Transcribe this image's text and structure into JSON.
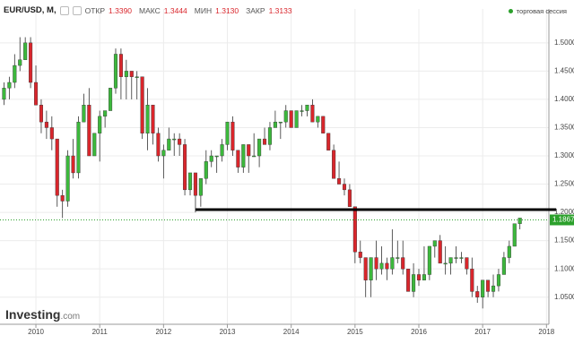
{
  "header": {
    "symbol": "EUR/USD, M,",
    "open_label": "ОТКР",
    "open": "1.3390",
    "high_label": "МАКС",
    "high": "1.3444",
    "low_label": "МИН",
    "low": "1.3130",
    "close_label": "ЗАКР",
    "close": "1.3133",
    "session": "торговая сессия"
  },
  "watermark": {
    "brand": "Investing",
    "suffix": ".com"
  },
  "chart_data": {
    "type": "candlestick",
    "up_color": "#3cb83c",
    "down_color": "#d9262c",
    "open": [
      1.4,
      1.42,
      1.43,
      1.46,
      1.47,
      1.5,
      1.43,
      1.39,
      1.36,
      1.35,
      1.33,
      1.23,
      1.22,
      1.3,
      1.27,
      1.36,
      1.39,
      1.3,
      1.34,
      1.37,
      1.38,
      1.42,
      1.48,
      1.44,
      1.45,
      1.44,
      1.44,
      1.34,
      1.39,
      1.34,
      1.3,
      1.31,
      1.33,
      1.33,
      1.32,
      1.24,
      1.27,
      1.23,
      1.26,
      1.29,
      1.3,
      1.3,
      1.32,
      1.36,
      1.31,
      1.28,
      1.32,
      1.3,
      1.3,
      1.33,
      1.32,
      1.35,
      1.36,
      1.36,
      1.38,
      1.35,
      1.38,
      1.38,
      1.39,
      1.36,
      1.37,
      1.34,
      1.31,
      1.26,
      1.25,
      1.24,
      1.21,
      1.13,
      1.12,
      1.08,
      1.12,
      1.1,
      1.11,
      1.1,
      1.12,
      1.12,
      1.1,
      1.06,
      1.09,
      1.08,
      1.09,
      1.14,
      1.15,
      1.11,
      1.11,
      1.12,
      1.12,
      1.12,
      1.1,
      1.06,
      1.05,
      1.08,
      1.06,
      1.07,
      1.09,
      1.12,
      1.14,
      1.18
    ],
    "high": [
      1.43,
      1.44,
      1.48,
      1.51,
      1.51,
      1.51,
      1.46,
      1.4,
      1.38,
      1.37,
      1.33,
      1.24,
      1.31,
      1.33,
      1.37,
      1.41,
      1.42,
      1.34,
      1.38,
      1.38,
      1.42,
      1.49,
      1.49,
      1.47,
      1.45,
      1.45,
      1.44,
      1.42,
      1.39,
      1.35,
      1.32,
      1.35,
      1.34,
      1.34,
      1.33,
      1.27,
      1.27,
      1.26,
      1.31,
      1.31,
      1.3,
      1.33,
      1.36,
      1.37,
      1.31,
      1.32,
      1.32,
      1.34,
      1.33,
      1.35,
      1.36,
      1.38,
      1.36,
      1.39,
      1.38,
      1.38,
      1.39,
      1.39,
      1.4,
      1.37,
      1.37,
      1.34,
      1.32,
      1.29,
      1.26,
      1.25,
      1.21,
      1.15,
      1.12,
      1.12,
      1.15,
      1.14,
      1.12,
      1.17,
      1.15,
      1.15,
      1.1,
      1.11,
      1.1,
      1.14,
      1.14,
      1.15,
      1.16,
      1.14,
      1.12,
      1.14,
      1.13,
      1.12,
      1.12,
      1.07,
      1.08,
      1.08,
      1.09,
      1.1,
      1.13,
      1.15,
      1.18,
      1.19
    ],
    "low": [
      1.39,
      1.4,
      1.42,
      1.45,
      1.47,
      1.42,
      1.39,
      1.34,
      1.33,
      1.31,
      1.21,
      1.19,
      1.21,
      1.26,
      1.26,
      1.36,
      1.3,
      1.3,
      1.29,
      1.35,
      1.38,
      1.41,
      1.4,
      1.4,
      1.4,
      1.4,
      1.33,
      1.31,
      1.32,
      1.29,
      1.26,
      1.31,
      1.3,
      1.3,
      1.23,
      1.23,
      1.2,
      1.21,
      1.25,
      1.28,
      1.27,
      1.29,
      1.31,
      1.3,
      1.27,
      1.27,
      1.27,
      1.3,
      1.28,
      1.32,
      1.31,
      1.35,
      1.33,
      1.35,
      1.35,
      1.35,
      1.37,
      1.37,
      1.36,
      1.35,
      1.34,
      1.31,
      1.26,
      1.25,
      1.23,
      1.21,
      1.11,
      1.11,
      1.05,
      1.05,
      1.08,
      1.09,
      1.08,
      1.09,
      1.11,
      1.09,
      1.06,
      1.05,
      1.07,
      1.08,
      1.08,
      1.12,
      1.11,
      1.09,
      1.09,
      1.11,
      1.11,
      1.09,
      1.05,
      1.04,
      1.03,
      1.05,
      1.05,
      1.06,
      1.09,
      1.11,
      1.14,
      1.17
    ],
    "close": [
      1.42,
      1.43,
      1.46,
      1.47,
      1.5,
      1.43,
      1.39,
      1.36,
      1.35,
      1.33,
      1.23,
      1.22,
      1.3,
      1.27,
      1.36,
      1.39,
      1.3,
      1.34,
      1.37,
      1.38,
      1.42,
      1.48,
      1.44,
      1.45,
      1.44,
      1.44,
      1.34,
      1.39,
      1.34,
      1.3,
      1.31,
      1.33,
      1.33,
      1.32,
      1.24,
      1.27,
      1.23,
      1.26,
      1.29,
      1.3,
      1.3,
      1.32,
      1.36,
      1.31,
      1.28,
      1.32,
      1.3,
      1.3,
      1.33,
      1.32,
      1.35,
      1.36,
      1.36,
      1.38,
      1.35,
      1.38,
      1.38,
      1.39,
      1.36,
      1.37,
      1.34,
      1.31,
      1.26,
      1.25,
      1.24,
      1.21,
      1.13,
      1.12,
      1.08,
      1.12,
      1.1,
      1.11,
      1.1,
      1.12,
      1.12,
      1.1,
      1.06,
      1.09,
      1.08,
      1.09,
      1.14,
      1.15,
      1.11,
      1.11,
      1.12,
      1.12,
      1.12,
      1.1,
      1.06,
      1.05,
      1.08,
      1.06,
      1.07,
      1.09,
      1.12,
      1.14,
      1.18,
      1.19
    ],
    "xlim": [
      -0.75,
      102.45
    ],
    "xticks": [
      {
        "value": 6,
        "label": "2010"
      },
      {
        "value": 18,
        "label": "2011"
      },
      {
        "value": 30,
        "label": "2012"
      },
      {
        "value": 42,
        "label": "2013"
      },
      {
        "value": 54,
        "label": "2014"
      },
      {
        "value": 66,
        "label": "2015"
      },
      {
        "value": 78,
        "label": "2016"
      },
      {
        "value": 90,
        "label": "2017"
      },
      {
        "value": 102,
        "label": "2018"
      }
    ],
    "ylim": [
      1.002,
      1.56
    ],
    "yticks": [
      {
        "value": 1.05,
        "label": "1.0500"
      },
      {
        "value": 1.1,
        "label": "1.1000"
      },
      {
        "value": 1.15,
        "label": "1.1500"
      },
      {
        "value": 1.2,
        "label": "1.2000"
      },
      {
        "value": 1.25,
        "label": "1.2500"
      },
      {
        "value": 1.3,
        "label": "1.3000"
      },
      {
        "value": 1.35,
        "label": "1.3500"
      },
      {
        "value": 1.4,
        "label": "1.4000"
      },
      {
        "value": 1.45,
        "label": "1.4500"
      },
      {
        "value": 1.5,
        "label": "1.5000"
      }
    ],
    "grid": true,
    "hline": {
      "value": 1.205,
      "from": 36,
      "color": "#000000"
    },
    "last_price": 1.1867,
    "last_color": "#2ca02c"
  }
}
